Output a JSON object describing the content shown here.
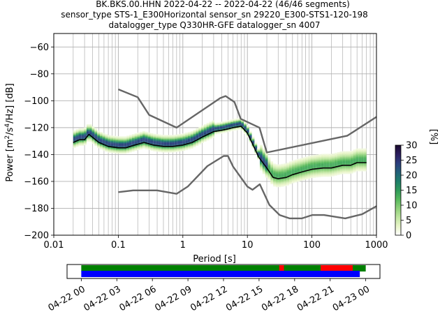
{
  "chart_data": [
    {
      "type": "heatmap",
      "title_lines": [
        "BK.BKS.00.HHN   2022-04-22 -- 2022-04-22  (46/46 segments)",
        "sensor_type STS-1_E300Horizontal sensor_sn 29220_E300-STS1-120-198",
        "datalogger_type Q330HR-GFE datalogger_sn 4007"
      ],
      "xlabel": "Period [s]",
      "ylabel_main": "Power [m",
      "ylabel_sup1": "2",
      "ylabel_mid": "/s",
      "ylabel_sup2": "4",
      "ylabel_end": "/Hz] [dB]",
      "xscale": "log",
      "xlim": [
        0.01,
        1000
      ],
      "ylim": [
        -200,
        -50
      ],
      "grid": true,
      "x_ticks": [
        {
          "value": 0.01,
          "label": "0.01"
        },
        {
          "value": 0.1,
          "label": "0.1"
        },
        {
          "value": 1,
          "label": "1"
        },
        {
          "value": 10,
          "label": "10"
        },
        {
          "value": 100,
          "label": "100"
        },
        {
          "value": 1000,
          "label": "1000"
        }
      ],
      "y_ticks": [
        {
          "value": -60,
          "label": "−60"
        },
        {
          "value": -80,
          "label": "−80"
        },
        {
          "value": -100,
          "label": "−100"
        },
        {
          "value": -120,
          "label": "−120"
        },
        {
          "value": -140,
          "label": "−140"
        },
        {
          "value": -160,
          "label": "−160"
        },
        {
          "value": -180,
          "label": "−180"
        },
        {
          "value": -200,
          "label": "−200"
        }
      ],
      "series": [
        {
          "role": "noise-model-high",
          "color": "#666666",
          "x": [
            0.1,
            0.2,
            0.3,
            0.8,
            3.8,
            4.6,
            6.3,
            7.9,
            15.4,
            20,
            354.8,
            1000
          ],
          "y": [
            -91.5,
            -97.4,
            -110.5,
            -120.0,
            -98.0,
            -96.5,
            -101.0,
            -113.5,
            -120.0,
            -138.5,
            -126.0,
            -112.0
          ]
        },
        {
          "role": "noise-model-low",
          "color": "#666666",
          "x": [
            0.1,
            0.17,
            0.4,
            0.8,
            1.2,
            2.4,
            4.3,
            5,
            6,
            10,
            12,
            15.6,
            21.9,
            31.6,
            45,
            70,
            101,
            154,
            328,
            600,
            1000
          ],
          "y": [
            -168.0,
            -166.7,
            -166.7,
            -169.2,
            -163.7,
            -148.6,
            -141.1,
            -141.1,
            -149.0,
            -163.8,
            -166.2,
            -162.1,
            -177.5,
            -185.0,
            -187.5,
            -187.5,
            -185.0,
            -185.0,
            -187.5,
            -184.4,
            -178.4
          ]
        },
        {
          "role": "mode",
          "color": "#000000",
          "x": [
            0.02,
            0.025,
            0.03,
            0.035,
            0.05,
            0.07,
            0.1,
            0.13,
            0.18,
            0.25,
            0.35,
            0.5,
            0.7,
            1,
            1.4,
            2,
            3,
            4,
            5,
            6,
            8,
            10,
            12,
            15,
            20,
            25,
            30,
            40,
            50,
            70,
            100,
            150,
            200,
            300,
            400,
            500,
            700
          ],
          "y": [
            -131,
            -129,
            -129,
            -125,
            -131,
            -134,
            -135,
            -135,
            -133,
            -131,
            -133,
            -134,
            -134,
            -133,
            -131,
            -127,
            -123,
            -122,
            -121,
            -120,
            -119,
            -124,
            -132,
            -142,
            -150,
            -157,
            -158,
            -157,
            -155,
            -153,
            -151,
            -150,
            -150,
            -148,
            -148,
            -146,
            -146
          ]
        }
      ],
      "colorbar": {
        "label": "[%]",
        "min": 0,
        "max": 30,
        "ticks": [
          {
            "value": 0,
            "label": "0"
          },
          {
            "value": 5,
            "label": "5"
          },
          {
            "value": 10,
            "label": "10"
          },
          {
            "value": 15,
            "label": "15"
          },
          {
            "value": 20,
            "label": "20"
          },
          {
            "value": 25,
            "label": "25"
          },
          {
            "value": 30,
            "label": "30"
          }
        ],
        "colormap": [
          "#ffffff",
          "#e8f5c8",
          "#bfe5a0",
          "#8ed07a",
          "#56b85c",
          "#2f9a5a",
          "#1e7e6a",
          "#22607a",
          "#2c3e7e",
          "#2b1d5e",
          "#1a0a2e"
        ]
      }
    },
    {
      "type": "timeline",
      "time_ticks": [
        {
          "hour": 0,
          "label": "04-22 00"
        },
        {
          "hour": 3,
          "label": "04-22 03"
        },
        {
          "hour": 6,
          "label": "04-22 06"
        },
        {
          "hour": 9,
          "label": "04-22 09"
        },
        {
          "hour": 12,
          "label": "04-22 12"
        },
        {
          "hour": 15,
          "label": "04-22 15"
        },
        {
          "hour": 18,
          "label": "04-22 18"
        },
        {
          "hour": 21,
          "label": "04-22 21"
        },
        {
          "hour": 24,
          "label": "04-23 00"
        }
      ],
      "x_range_hours": [
        -1.2,
        25.2
      ],
      "bars": [
        {
          "row": "top",
          "color": "#008000",
          "start_hour": 0,
          "end_hour": 24
        },
        {
          "row": "top",
          "color": "#ff0000",
          "start_hour": 16.7,
          "end_hour": 17.1
        },
        {
          "row": "top",
          "color": "#ff0000",
          "start_hour": 20.2,
          "end_hour": 22.9
        },
        {
          "row": "bottom",
          "color": "#0000ff",
          "start_hour": 0,
          "end_hour": 23.5
        }
      ]
    }
  ]
}
